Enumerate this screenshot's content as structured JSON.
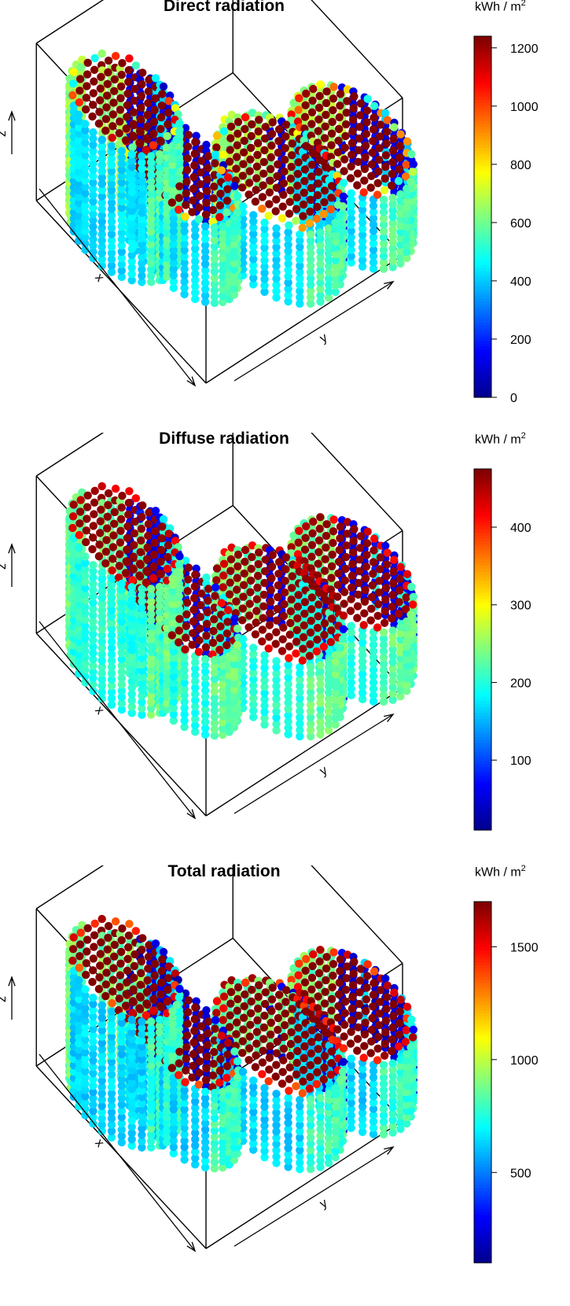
{
  "chart_data": [
    {
      "type": "scatter3d",
      "title": "Direct radiation",
      "xlabel": "x",
      "ylabel": "y",
      "zlabel": "z",
      "colorbar": {
        "unit_base": "kWh / m",
        "unit_sup": "2",
        "range": [
          0,
          1240
        ],
        "ticks": [
          0,
          200,
          400,
          600,
          800,
          1000,
          1200
        ],
        "colormap": "jet"
      },
      "surface_values": {
        "roof": 1240,
        "side_north": 650,
        "side_west": 430,
        "side_south": 560,
        "side_east": 420,
        "side_shaded": 120,
        "edge": 470
      }
    },
    {
      "type": "scatter3d",
      "title": "Diffuse radiation",
      "xlabel": "x",
      "ylabel": "y",
      "zlabel": "z",
      "colorbar": {
        "unit_base": "kWh / m",
        "unit_sup": "2",
        "range": [
          10,
          475
        ],
        "ticks": [
          100,
          200,
          300,
          400
        ],
        "colormap": "jet"
      },
      "surface_values": {
        "roof": 470,
        "side_north": 235,
        "side_west": 200,
        "side_south": 230,
        "side_east": 190,
        "side_shaded": 60,
        "edge": 410
      }
    },
    {
      "type": "scatter3d",
      "title": "Total radiation",
      "xlabel": "x",
      "ylabel": "y",
      "zlabel": "z",
      "colorbar": {
        "unit_base": "kWh / m",
        "unit_sup": "2",
        "range": [
          100,
          1700
        ],
        "ticks": [
          500,
          1000,
          1500
        ],
        "colormap": "jet"
      },
      "surface_values": {
        "roof": 1700,
        "side_north": 880,
        "side_west": 640,
        "side_south": 790,
        "side_east": 620,
        "side_shaded": 230,
        "edge": 1350
      }
    }
  ]
}
